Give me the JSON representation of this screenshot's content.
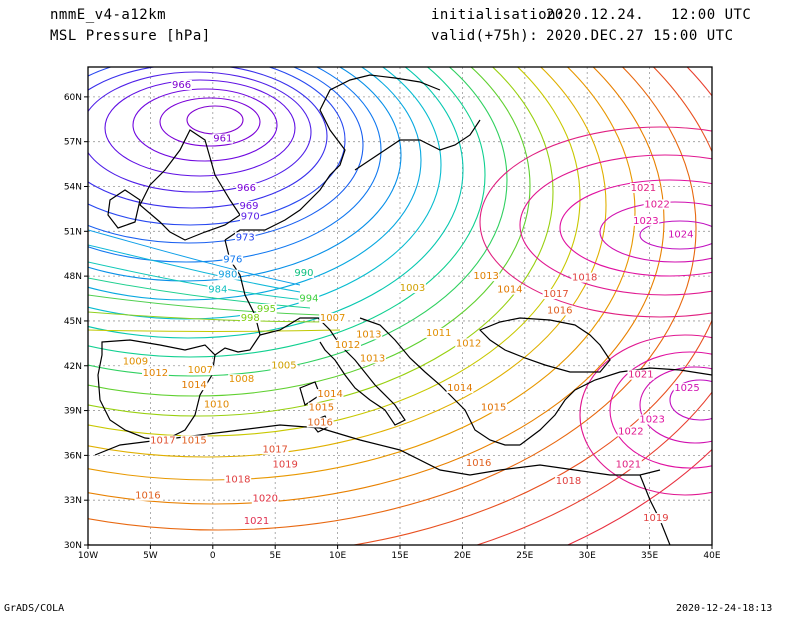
{
  "header": {
    "model": "nmmE_v4-a12km",
    "field": "MSL Pressure [hPa]",
    "init_label": "initialisation:",
    "init_value": "2020.12.24.   12:00 UTC",
    "valid_label": "valid(+75h):",
    "valid_value": "2020.DEC.27 15:00 UTC"
  },
  "footer": {
    "left": "GrADS/COLA",
    "right": "2020-12-24-18:13"
  },
  "map": {
    "lon_ticks": [
      "10W",
      "5W",
      "0",
      "5E",
      "10E",
      "15E",
      "20E",
      "25E",
      "30E",
      "35E",
      "40E"
    ],
    "lat_ticks": [
      "60N",
      "57N",
      "54N",
      "51N",
      "48N",
      "45N",
      "42N",
      "39N",
      "36N",
      "33N",
      "30N"
    ],
    "lon_range": [
      -10,
      40
    ],
    "lat_range": [
      30,
      62
    ],
    "grid": true,
    "contour_labels": [
      {
        "text": "966",
        "lon": -2.5,
        "lat": 60.6,
        "c": "#7f00d0"
      },
      {
        "text": "961",
        "lon": 0.8,
        "lat": 57.0,
        "c": "#7f00d0"
      },
      {
        "text": "966",
        "lon": 2.7,
        "lat": 53.7,
        "c": "#7a00d8"
      },
      {
        "text": "969",
        "lon": 2.9,
        "lat": 52.5,
        "c": "#6a10e0"
      },
      {
        "text": "970",
        "lon": 3.0,
        "lat": 51.8,
        "c": "#5a20e6"
      },
      {
        "text": "973",
        "lon": 2.6,
        "lat": 50.4,
        "c": "#2040f0"
      },
      {
        "text": "976",
        "lon": 1.6,
        "lat": 48.9,
        "c": "#1078f0"
      },
      {
        "text": "980",
        "lon": 1.2,
        "lat": 47.9,
        "c": "#10a0e0"
      },
      {
        "text": "984",
        "lon": 0.4,
        "lat": 46.9,
        "c": "#10c0c0"
      },
      {
        "text": "990",
        "lon": 7.3,
        "lat": 48.0,
        "c": "#10c080"
      },
      {
        "text": "994",
        "lon": 7.7,
        "lat": 46.3,
        "c": "#40d040"
      },
      {
        "text": "998",
        "lon": 3.0,
        "lat": 45.0,
        "c": "#80d010"
      },
      {
        "text": "995",
        "lon": 4.3,
        "lat": 45.6,
        "c": "#70d020"
      },
      {
        "text": "1003",
        "lon": 16.0,
        "lat": 47.0,
        "c": "#d0a000"
      },
      {
        "text": "1007",
        "lon": 9.6,
        "lat": 45.0,
        "c": "#e09000"
      },
      {
        "text": "1013",
        "lon": 12.5,
        "lat": 43.9,
        "c": "#e08800"
      },
      {
        "text": "1012",
        "lon": 10.8,
        "lat": 43.2,
        "c": "#e08800"
      },
      {
        "text": "1013",
        "lon": 12.8,
        "lat": 42.3,
        "c": "#e08800"
      },
      {
        "text": "1011",
        "lon": 18.1,
        "lat": 44.0,
        "c": "#e09000"
      },
      {
        "text": "1012",
        "lon": 20.5,
        "lat": 43.3,
        "c": "#e08800"
      },
      {
        "text": "1013",
        "lon": 21.9,
        "lat": 47.8,
        "c": "#e08000"
      },
      {
        "text": "1014",
        "lon": 23.8,
        "lat": 46.9,
        "c": "#e07800"
      },
      {
        "text": "1017",
        "lon": 27.5,
        "lat": 46.6,
        "c": "#e05030"
      },
      {
        "text": "1018",
        "lon": 29.8,
        "lat": 47.7,
        "c": "#e04040"
      },
      {
        "text": "1016",
        "lon": 27.8,
        "lat": 45.5,
        "c": "#e06020"
      },
      {
        "text": "1009",
        "lon": -6.2,
        "lat": 42.1,
        "c": "#e09000"
      },
      {
        "text": "1012",
        "lon": -4.6,
        "lat": 41.3,
        "c": "#e08000"
      },
      {
        "text": "1007",
        "lon": -1.0,
        "lat": 41.5,
        "c": "#e09000"
      },
      {
        "text": "1008",
        "lon": 2.3,
        "lat": 40.9,
        "c": "#e09000"
      },
      {
        "text": "1014",
        "lon": -1.5,
        "lat": 40.5,
        "c": "#e07800"
      },
      {
        "text": "1010",
        "lon": 0.3,
        "lat": 39.2,
        "c": "#e08800"
      },
      {
        "text": "1005",
        "lon": 5.7,
        "lat": 41.8,
        "c": "#d0a000"
      },
      {
        "text": "1014",
        "lon": 9.4,
        "lat": 39.9,
        "c": "#e07800"
      },
      {
        "text": "1015",
        "lon": 8.7,
        "lat": 39.0,
        "c": "#e07000"
      },
      {
        "text": "1016",
        "lon": 8.6,
        "lat": 38.0,
        "c": "#e06820"
      },
      {
        "text": "1014",
        "lon": 19.8,
        "lat": 40.3,
        "c": "#e07800"
      },
      {
        "text": "1015",
        "lon": 22.5,
        "lat": 39.0,
        "c": "#e07000"
      },
      {
        "text": "1017",
        "lon": -4.0,
        "lat": 36.8,
        "c": "#e05030"
      },
      {
        "text": "1015",
        "lon": -1.5,
        "lat": 36.8,
        "c": "#e06020"
      },
      {
        "text": "1017",
        "lon": 5.0,
        "lat": 36.2,
        "c": "#e05030"
      },
      {
        "text": "1019",
        "lon": 5.8,
        "lat": 35.2,
        "c": "#e04040"
      },
      {
        "text": "1018",
        "lon": 2.0,
        "lat": 34.2,
        "c": "#e04040"
      },
      {
        "text": "1016",
        "lon": -5.2,
        "lat": 33.1,
        "c": "#e06020"
      },
      {
        "text": "1020",
        "lon": 4.2,
        "lat": 32.9,
        "c": "#e03040"
      },
      {
        "text": "1021",
        "lon": 3.5,
        "lat": 31.4,
        "c": "#e03050"
      },
      {
        "text": "1016",
        "lon": 21.3,
        "lat": 35.3,
        "c": "#e06020"
      },
      {
        "text": "1018",
        "lon": 28.5,
        "lat": 34.1,
        "c": "#e04040"
      },
      {
        "text": "1021",
        "lon": 34.5,
        "lat": 53.7,
        "c": "#e02080"
      },
      {
        "text": "1022",
        "lon": 35.6,
        "lat": 52.6,
        "c": "#e01890"
      },
      {
        "text": "1023",
        "lon": 34.7,
        "lat": 51.5,
        "c": "#e010a0"
      },
      {
        "text": "1024",
        "lon": 37.5,
        "lat": 50.6,
        "c": "#d010b0"
      },
      {
        "text": "1021",
        "lon": 34.3,
        "lat": 41.2,
        "c": "#e02080"
      },
      {
        "text": "1025",
        "lon": 38.0,
        "lat": 40.3,
        "c": "#d010b0"
      },
      {
        "text": "1023",
        "lon": 35.2,
        "lat": 38.2,
        "c": "#e010a0"
      },
      {
        "text": "1022",
        "lon": 33.5,
        "lat": 37.4,
        "c": "#e01890"
      },
      {
        "text": "1021",
        "lon": 33.3,
        "lat": 35.2,
        "c": "#e02080"
      },
      {
        "text": "1019",
        "lon": 35.5,
        "lat": 31.6,
        "c": "#e04040"
      }
    ]
  }
}
